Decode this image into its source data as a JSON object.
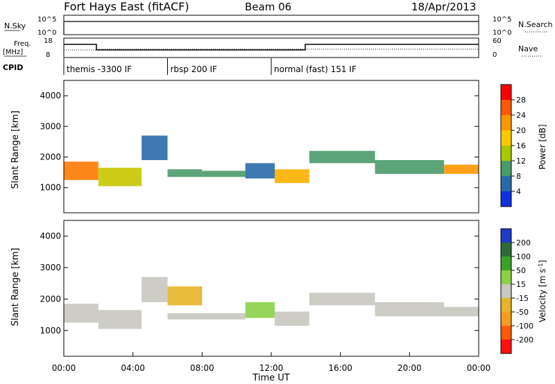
{
  "header": {
    "station": "Fort Hays East (fitACF)",
    "beam": "Beam 06",
    "date": "18/Apr/2013"
  },
  "nsky_panel": {
    "left_label": "N.Sky",
    "left_ticks": [
      "10^5",
      "10^0"
    ],
    "right_ticks": [
      "10^5",
      "10^0"
    ],
    "right_label": "N.Search"
  },
  "freq_panel": {
    "left_label_line1": "Freq.",
    "left_label_line2": "[MHz]",
    "left_ticks": [
      "18",
      "8"
    ],
    "right_ticks": [
      "60",
      "0"
    ],
    "right_label": "Nave"
  },
  "cpid": {
    "label": "CPID",
    "segments": [
      {
        "start_h": 0.0,
        "end_h": 6.0,
        "text": "themis -3300 IF"
      },
      {
        "start_h": 6.0,
        "end_h": 12.0,
        "text": "rbsp 200 IF"
      },
      {
        "start_h": 12.0,
        "end_h": 24.0,
        "text": "normal (fast) 151 IF"
      }
    ]
  },
  "power_colorbar": {
    "label": "Power [dB]",
    "ticks": [
      "28",
      "24",
      "20",
      "16",
      "12",
      "8",
      "4"
    ],
    "colors": [
      "#ff0000",
      "#ff5a00",
      "#ff9600",
      "#ffc800",
      "#a6c800",
      "#4a9a6a",
      "#2a6aa8",
      "#1030e0"
    ]
  },
  "velocity_colorbar": {
    "label": "Velocity [m s",
    "label_sup": "-1",
    "label_end": "]",
    "ticks": [
      "200",
      "100",
      "50",
      "15",
      "-15",
      "-50",
      "-100",
      "-200"
    ],
    "colors": [
      "#1e3cc8",
      "#2e6a3a",
      "#3aa22a",
      "#8cd048",
      "#c8c8c0",
      "#e6b428",
      "#f59a20",
      "#ff5a00",
      "#ff1010"
    ]
  },
  "time_axis": {
    "xlabel": "Time UT",
    "ticks": [
      "00:00",
      "04:00",
      "08:00",
      "12:00",
      "16:00",
      "20:00",
      "00:00"
    ]
  },
  "chart_data": [
    {
      "type": "heatmap",
      "title": "Power",
      "ylabel": "Slant Range [km]",
      "xlabel": "",
      "x_ticks": [
        "00:00",
        "04:00",
        "08:00",
        "12:00",
        "16:00",
        "20:00",
        "00:00"
      ],
      "y_ticks": [
        1000,
        2000,
        3000,
        4000
      ],
      "xlim_hours": [
        0,
        24
      ],
      "ylim_km": [
        180,
        4500
      ],
      "colorbar": "Power [dB]",
      "bands": [
        {
          "h0": 0.0,
          "h1": 2.0,
          "r_lo": 1250,
          "r_hi": 1850,
          "color": "#ff7a00"
        },
        {
          "h0": 2.0,
          "h1": 4.5,
          "r_lo": 1050,
          "r_hi": 1650,
          "color": "#c8c800"
        },
        {
          "h0": 4.5,
          "h1": 6.0,
          "r_lo": 1900,
          "r_hi": 2700,
          "color": "#2a6aa8"
        },
        {
          "h0": 6.0,
          "h1": 8.0,
          "r_lo": 1350,
          "r_hi": 1600,
          "color": "#4a9a6a"
        },
        {
          "h0": 8.0,
          "h1": 10.5,
          "r_lo": 1350,
          "r_hi": 1550,
          "color": "#4a9a6a"
        },
        {
          "h0": 10.5,
          "h1": 12.2,
          "r_lo": 1300,
          "r_hi": 1800,
          "color": "#2a6aa8"
        },
        {
          "h0": 12.2,
          "h1": 14.2,
          "r_lo": 1150,
          "r_hi": 1600,
          "color": "#ffb000"
        },
        {
          "h0": 14.2,
          "h1": 18.0,
          "r_lo": 1800,
          "r_hi": 2200,
          "color": "#4a9a6a"
        },
        {
          "h0": 18.0,
          "h1": 22.0,
          "r_lo": 1450,
          "r_hi": 1900,
          "color": "#4a9a6a"
        },
        {
          "h0": 22.0,
          "h1": 24.0,
          "r_lo": 1450,
          "r_hi": 1750,
          "color": "#ff9600"
        }
      ]
    },
    {
      "type": "heatmap",
      "title": "Velocity",
      "ylabel": "Slant Range [km]",
      "xlabel": "Time UT",
      "x_ticks": [
        "00:00",
        "04:00",
        "08:00",
        "12:00",
        "16:00",
        "20:00",
        "00:00"
      ],
      "y_ticks": [
        1000,
        2000,
        3000,
        4000
      ],
      "xlim_hours": [
        0,
        24
      ],
      "ylim_km": [
        180,
        4500
      ],
      "colorbar": "Velocity [m s-1]",
      "bands": [
        {
          "h0": 0.0,
          "h1": 2.0,
          "r_lo": 1250,
          "r_hi": 1850,
          "color": "#c8c8c0"
        },
        {
          "h0": 2.0,
          "h1": 4.5,
          "r_lo": 1050,
          "r_hi": 1650,
          "color": "#c8c8c0"
        },
        {
          "h0": 4.5,
          "h1": 6.0,
          "r_lo": 1900,
          "r_hi": 2700,
          "color": "#c8c8c0"
        },
        {
          "h0": 6.0,
          "h1": 8.0,
          "r_lo": 1800,
          "r_hi": 2400,
          "color": "#e6b428"
        },
        {
          "h0": 6.0,
          "h1": 10.5,
          "r_lo": 1350,
          "r_hi": 1550,
          "color": "#c8c8c0"
        },
        {
          "h0": 10.5,
          "h1": 12.2,
          "r_lo": 1400,
          "r_hi": 1900,
          "color": "#8cd048"
        },
        {
          "h0": 12.2,
          "h1": 14.2,
          "r_lo": 1150,
          "r_hi": 1600,
          "color": "#c8c8c0"
        },
        {
          "h0": 14.2,
          "h1": 18.0,
          "r_lo": 1800,
          "r_hi": 2200,
          "color": "#c8c8c0"
        },
        {
          "h0": 18.0,
          "h1": 22.0,
          "r_lo": 1450,
          "r_hi": 1900,
          "color": "#c8c8c0"
        },
        {
          "h0": 22.0,
          "h1": 24.0,
          "r_lo": 1450,
          "r_hi": 1750,
          "color": "#c8c8c0"
        }
      ]
    }
  ]
}
